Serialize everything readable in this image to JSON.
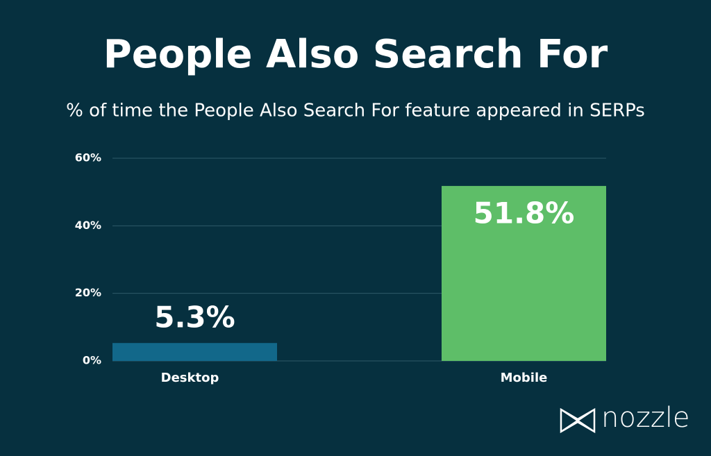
{
  "chart_data": {
    "type": "bar",
    "title": "People Also Search For",
    "subtitle": "% of time the People Also Search For feature appeared in SERPs",
    "categories": [
      "Desktop",
      "Mobile"
    ],
    "values": [
      5.3,
      51.8
    ],
    "value_labels": [
      "5.3%",
      "51.8%"
    ],
    "colors": [
      "#12688a",
      "#5ebe68"
    ],
    "ylim": [
      0,
      60
    ],
    "yticks": [
      {
        "value": 0,
        "label": "0%"
      },
      {
        "value": 20,
        "label": "20%"
      },
      {
        "value": 40,
        "label": "40%"
      },
      {
        "value": 60,
        "label": "60%"
      }
    ],
    "grid": true
  },
  "brand": "nozzle"
}
